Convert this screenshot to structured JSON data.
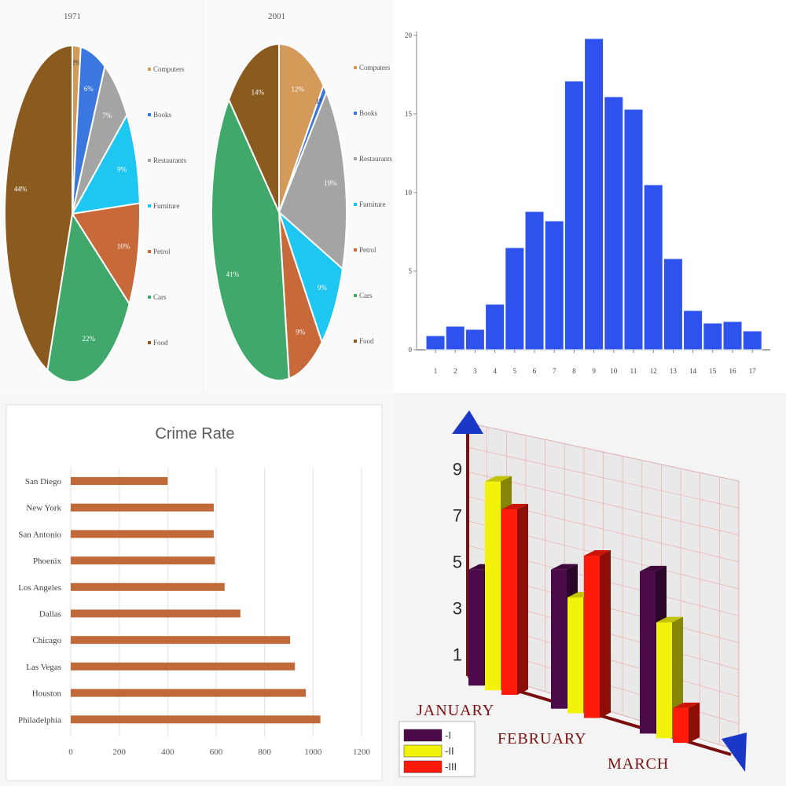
{
  "chart_data": [
    {
      "type": "pie",
      "title": "1971",
      "legend_position": "right",
      "categories": [
        "Computers",
        "Books",
        "Restaurants",
        "Furniture",
        "Petrol",
        "Cars",
        "Food"
      ],
      "values": [
        2,
        6,
        7,
        9,
        10,
        22,
        44
      ],
      "labels": [
        "2%",
        "6%",
        "7%",
        "9%",
        "10%",
        "22%",
        "44%"
      ],
      "colors": [
        "#d49a5a",
        "#3a78e0",
        "#a4a4a4",
        "#1ec6f2",
        "#c8693a",
        "#3fa86a",
        "#8a5a1f"
      ]
    },
    {
      "type": "pie",
      "title": "2001",
      "legend_position": "right",
      "categories": [
        "Computers",
        "Books",
        "Restaurants",
        "Furniture",
        "Petrol",
        "Cars",
        "Food"
      ],
      "values": [
        12,
        1,
        19,
        9,
        9,
        41,
        14
      ],
      "labels": [
        "12%",
        "1%",
        "19%",
        "9%",
        "9%",
        "41%",
        "14%"
      ],
      "colors": [
        "#d49a5a",
        "#3a78e0",
        "#a4a4a4",
        "#1ec6f2",
        "#c8693a",
        "#3fa86a",
        "#8a5a1f"
      ]
    },
    {
      "type": "bar",
      "categories": [
        "1",
        "2",
        "3",
        "4",
        "5",
        "6",
        "7",
        "8",
        "9",
        "10",
        "11",
        "12",
        "13",
        "14",
        "15",
        "16",
        "17"
      ],
      "values": [
        0.9,
        1.5,
        1.3,
        2.9,
        6.5,
        8.8,
        8.2,
        17.1,
        19.8,
        16.1,
        15.3,
        10.5,
        5.8,
        2.5,
        1.7,
        1.8,
        1.2
      ],
      "ylim": [
        0,
        20
      ],
      "yticks": [
        0,
        5,
        10,
        15,
        20
      ],
      "color": "#2e52ee"
    },
    {
      "type": "bar",
      "orientation": "horizontal",
      "title": "Crime Rate",
      "categories": [
        "San Diego",
        "New York",
        "San Antonio",
        "Phoenix",
        "Los Angeles",
        "Dallas",
        "Chicago",
        "Las Vegas",
        "Houston",
        "Philadelphia"
      ],
      "values": [
        400,
        590,
        590,
        595,
        635,
        700,
        905,
        925,
        970,
        1030
      ],
      "xlim": [
        0,
        1200
      ],
      "xticks": [
        0,
        200,
        400,
        600,
        800,
        1000,
        1200
      ],
      "color": "#c06a3a",
      "grid": true
    },
    {
      "type": "bar",
      "style": "3d",
      "categories": [
        "JANUARY",
        "FEBRUARY",
        "MARCH"
      ],
      "series": [
        {
          "name": "I",
          "values": [
            5,
            6,
            7
          ],
          "color": "#4d0a4a"
        },
        {
          "name": "II",
          "values": [
            9,
            5,
            5
          ],
          "color": "#f2f20a"
        },
        {
          "name": "III",
          "values": [
            8,
            7,
            1.5
          ],
          "color": "#ff1a0a"
        }
      ],
      "ylim": [
        0,
        10
      ],
      "yticks": [
        1,
        3,
        5,
        7,
        9
      ],
      "grid": true,
      "legend_position": "bottom-left"
    }
  ]
}
